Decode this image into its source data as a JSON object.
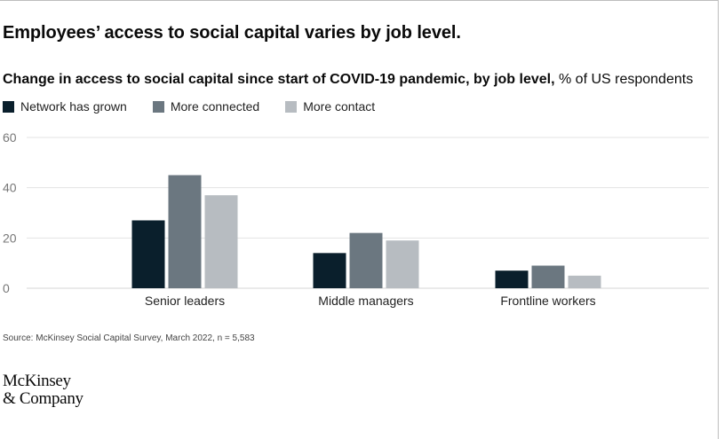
{
  "headline": "Employees’ access to social capital varies by job level.",
  "subtitle": {
    "bold": "Change in access to social capital since start of COVID-19 pandemic, by job level,",
    "regular": " % of US respondents"
  },
  "source": "Source: McKinsey Social Capital Survey, March 2022, n = 5,583",
  "logo": {
    "line1": "McKinsey",
    "line2": "& Company"
  },
  "colors": {
    "series1": "#0a1f2c",
    "series2": "#6b7780",
    "series3": "#b7bcc1",
    "gridline": "#e3e3e3",
    "axis_text": "#777777"
  },
  "chart_data": {
    "type": "bar",
    "categories": [
      "Senior leaders",
      "Middle managers",
      "Frontline workers"
    ],
    "series": [
      {
        "name": "Network has grown",
        "values": [
          27,
          14,
          7
        ]
      },
      {
        "name": "More connected",
        "values": [
          45,
          22,
          9
        ]
      },
      {
        "name": "More contact",
        "values": [
          37,
          19,
          5
        ]
      }
    ],
    "ylim": [
      0,
      60
    ],
    "yticks": [
      "0",
      "20",
      "40",
      "60"
    ],
    "ytick_values": [
      0,
      20,
      40,
      60
    ],
    "grid": true,
    "legend_position": "top-left"
  }
}
